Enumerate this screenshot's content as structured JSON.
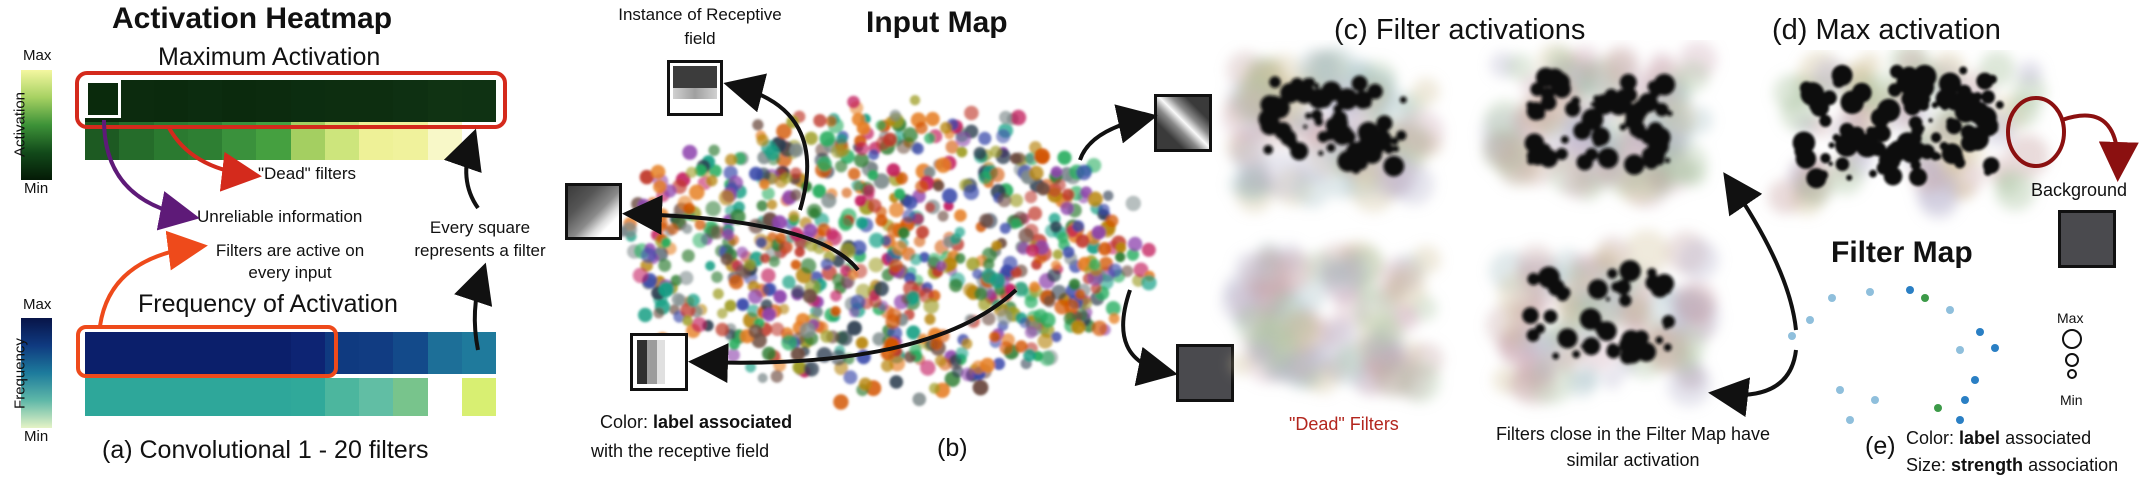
{
  "panel_a": {
    "heatmap_title": "Activation Heatmap",
    "max_activation_title": "Maximum Activation",
    "activation_scale": {
      "label": "Activation",
      "max": "Max",
      "min": "Min"
    },
    "dead_filters_note": "\"Dead\" filters",
    "unreliable_note": "Unreliable information",
    "filters_active_note": "Filters are active on every input",
    "every_square_note": "Every square represents a filter",
    "frequency_title": "Frequency of Activation",
    "frequency_scale": {
      "label": "Frequency",
      "max": "Max",
      "min": "Min"
    },
    "caption": "(a) Convolutional 1 - 20 filters"
  },
  "panel_b": {
    "title": "Input Map",
    "receptive_field_note": "Instance of Receptive field",
    "color_note_prefix": "Color:",
    "color_note_bold": "label associated",
    "color_note_rest": "with the receptive field",
    "caption": "(b)"
  },
  "panel_c": {
    "title": "(c) Filter activations",
    "dead_filters_label": "\"Dead\" Filters",
    "close_filters_note": "Filters close in the Filter Map have similar activation",
    "dead_color": "#b3261e"
  },
  "panel_d": {
    "title": "(d) Max activation",
    "background_label": "Background"
  },
  "panel_e": {
    "title": "Filter Map",
    "size_legend": {
      "max": "Max",
      "min": "Min"
    },
    "caption": "(e)",
    "color_prefix": "Color:",
    "color_bold": "label",
    "color_rest": "associated",
    "size_prefix": "Size:",
    "size_bold": "strength",
    "size_rest": "association"
  },
  "colors": {
    "highlight_red": "#d42a1c",
    "arrow_red": "#d42a1c",
    "arrow_purple": "#5e1a78",
    "arrow_orange": "#ee4a1b",
    "dark_tile": "#4a4a4e"
  }
}
